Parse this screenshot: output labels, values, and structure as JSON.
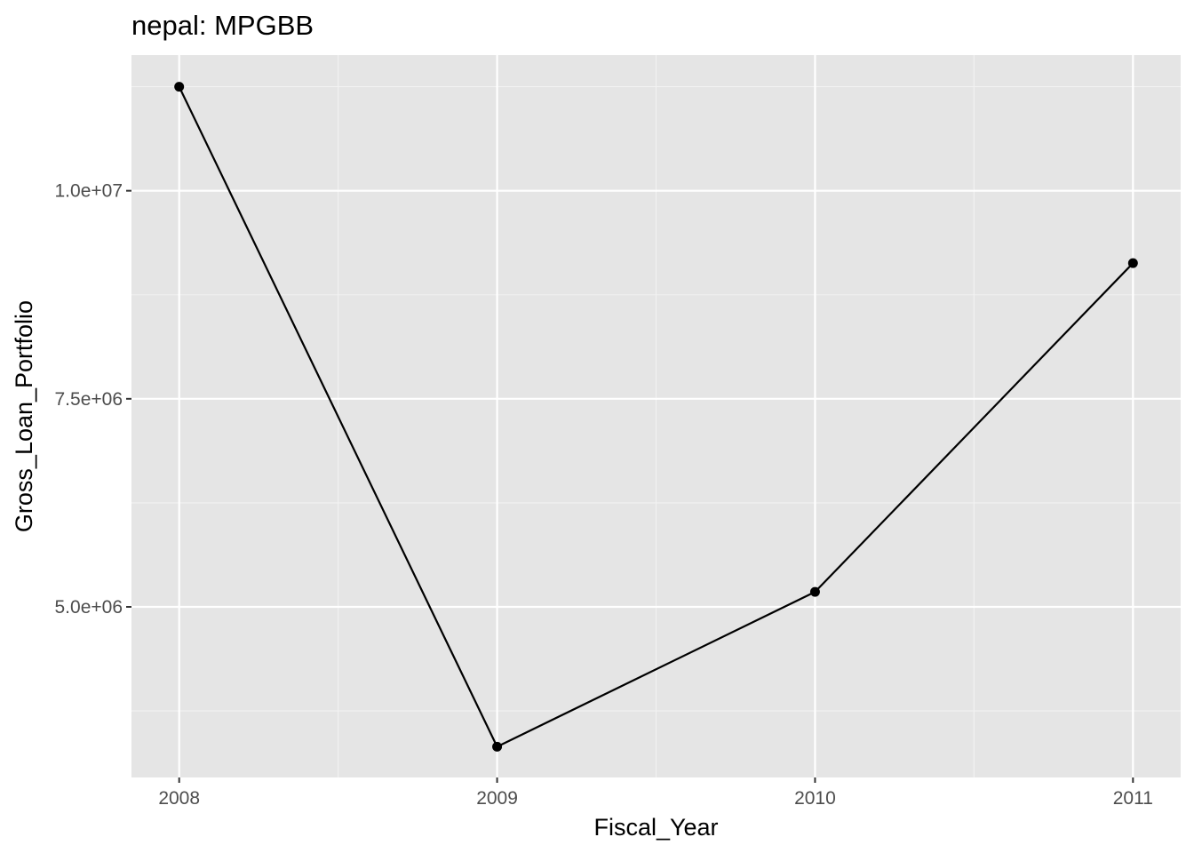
{
  "chart_data": {
    "type": "line",
    "title": "nepal:  MPGBB",
    "xlabel": "Fiscal_Year",
    "ylabel": "Gross_Loan_Portfolio",
    "x": [
      2008,
      2009,
      2010,
      2011
    ],
    "series": [
      {
        "values": [
          11250000,
          3320000,
          5180000,
          9130000
        ],
        "show_points": true,
        "color": "#000000"
      }
    ],
    "xlim": [
      2007.85,
      2011.15
    ],
    "ylim": [
      2950000,
      11630000
    ],
    "x_ticks": [
      2008,
      2009,
      2010,
      2011
    ],
    "x_tick_labels": [
      "2008",
      "2009",
      "2010",
      "2011"
    ],
    "y_ticks": [
      5000000,
      7500000,
      10000000
    ],
    "y_tick_labels": [
      "5.0e+06",
      "7.5e+06",
      "1.0e+07"
    ],
    "x_minor_ticks": [
      2008.5,
      2009.5,
      2010.5
    ],
    "y_minor_ticks": [
      3750000,
      6250000,
      8750000,
      11250000
    ],
    "grid": true,
    "legend": "none",
    "colors": {
      "panel_background": "#e5e5e5",
      "grid_major": "#ffffff",
      "grid_minor": "#f2f2f2",
      "tick_text": "#4d4d4d",
      "line": "#000000"
    }
  }
}
